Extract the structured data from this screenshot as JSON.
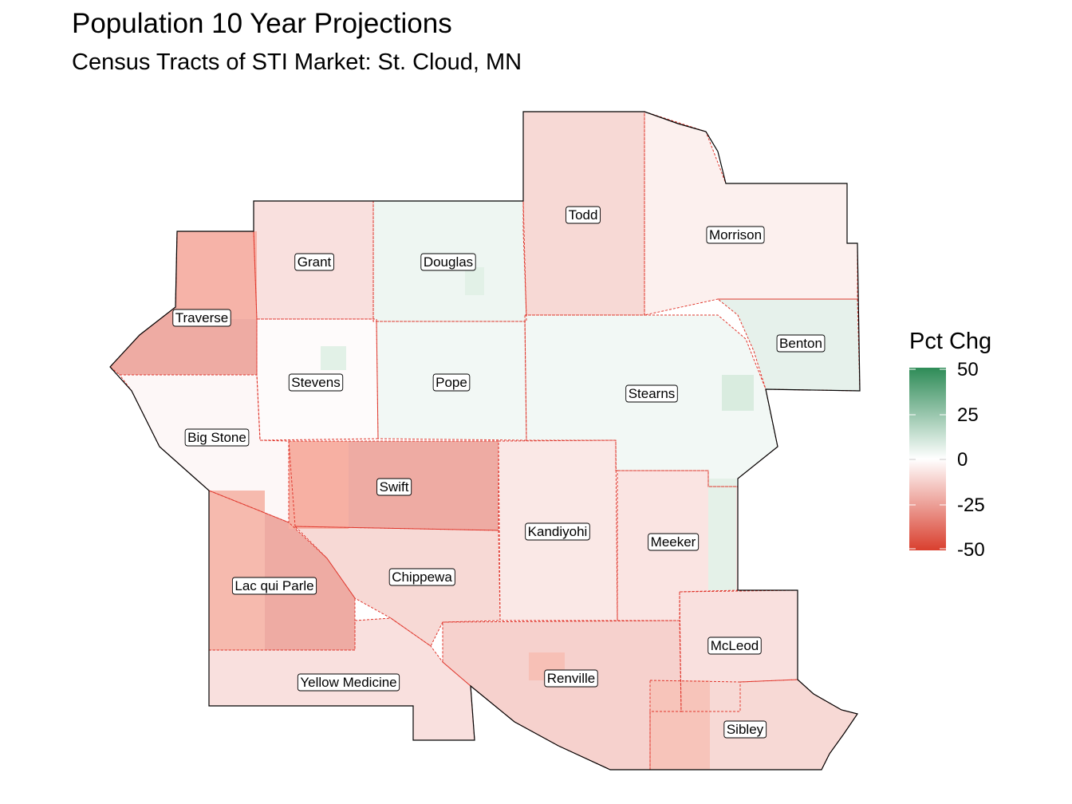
{
  "title": "Population 10 Year Projections",
  "subtitle": "Census Tracts of STI Market: St. Cloud, MN",
  "legend": {
    "title": "Pct Chg",
    "ticks": [
      "50",
      "25",
      "0",
      "-25",
      "-50"
    ],
    "low_color": "#d93f2e",
    "mid_color": "#ffffff",
    "high_color": "#2e8b57",
    "range": [
      -50,
      50
    ]
  },
  "colors": {
    "county_border": "#e0362c",
    "outline": "#000000"
  },
  "counties": [
    {
      "name": "Todd",
      "pct_chg": -10
    },
    {
      "name": "Morrison",
      "pct_chg": -4
    },
    {
      "name": "Grant",
      "pct_chg": -8
    },
    {
      "name": "Douglas",
      "pct_chg": 4
    },
    {
      "name": "Traverse",
      "pct_chg": -22
    },
    {
      "name": "Benton",
      "pct_chg": 6
    },
    {
      "name": "Stevens",
      "pct_chg": -1
    },
    {
      "name": "Pope",
      "pct_chg": 3
    },
    {
      "name": "Stearns",
      "pct_chg": 3
    },
    {
      "name": "Big Stone",
      "pct_chg": -2
    },
    {
      "name": "Swift",
      "pct_chg": -22
    },
    {
      "name": "Kandiyohi",
      "pct_chg": -6
    },
    {
      "name": "Meeker",
      "pct_chg": -7
    },
    {
      "name": "Lac qui Parle",
      "pct_chg": -22
    },
    {
      "name": "Chippewa",
      "pct_chg": -10
    },
    {
      "name": "McLeod",
      "pct_chg": -8
    },
    {
      "name": "Renville",
      "pct_chg": -12
    },
    {
      "name": "Yellow Medicine",
      "pct_chg": -8
    },
    {
      "name": "Sibley",
      "pct_chg": -10
    }
  ]
}
